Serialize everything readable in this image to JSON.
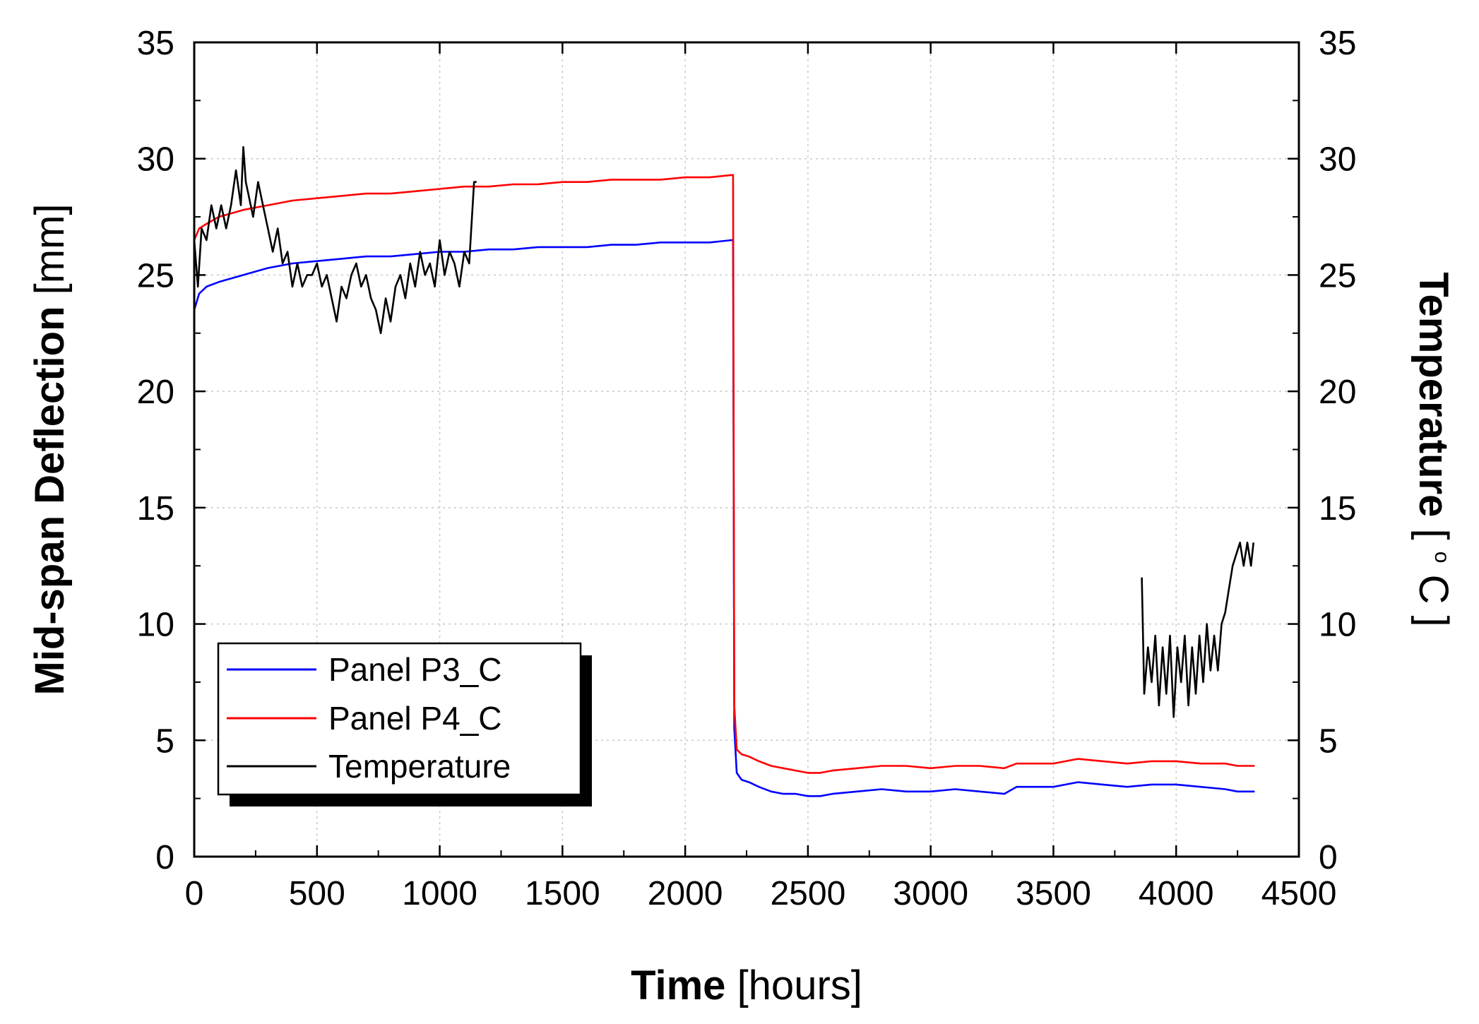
{
  "chart_data": {
    "type": "line",
    "title": "",
    "xlabel": {
      "bold": "Time",
      "unit": "[hours]"
    },
    "ylabel_left": {
      "bold": "Mid-span Deflection",
      "unit": "[mm]"
    },
    "ylabel_right": {
      "bold": "Temperature",
      "unit_open": "[ ",
      "unit_sup": "o",
      "unit_c": "C",
      "unit_close": "]"
    },
    "xlim": [
      0,
      4500
    ],
    "ylim_left": [
      0,
      35
    ],
    "ylim_right": [
      0,
      35
    ],
    "x_ticks": [
      0,
      500,
      1000,
      1500,
      2000,
      2500,
      3000,
      3500,
      4000,
      4500
    ],
    "y_ticks": [
      0,
      5,
      10,
      15,
      20,
      25,
      30,
      35
    ],
    "grid": true,
    "legend_position": "bottom-left",
    "series": [
      {
        "name": "Panel P3_C",
        "color": "#0000ff",
        "axis": "left",
        "x": [
          0,
          20,
          50,
          100,
          200,
          300,
          400,
          500,
          600,
          700,
          800,
          900,
          1000,
          1100,
          1200,
          1300,
          1400,
          1500,
          1600,
          1700,
          1800,
          1900,
          2000,
          2100,
          2190,
          2195,
          2200,
          2210,
          2230,
          2260,
          2300,
          2350,
          2400,
          2450,
          2500,
          2550,
          2600,
          2700,
          2800,
          2900,
          3000,
          3100,
          3200,
          3300,
          3350,
          3400,
          3500,
          3550,
          3600,
          3700,
          3800,
          3900,
          4000,
          4100,
          4200,
          4250,
          4320
        ],
        "values": [
          23.5,
          24.2,
          24.5,
          24.7,
          25.0,
          25.3,
          25.5,
          25.6,
          25.7,
          25.8,
          25.8,
          25.9,
          26.0,
          26.0,
          26.1,
          26.1,
          26.2,
          26.2,
          26.2,
          26.3,
          26.3,
          26.4,
          26.4,
          26.4,
          26.5,
          26.5,
          5.5,
          3.6,
          3.3,
          3.2,
          3.0,
          2.8,
          2.7,
          2.7,
          2.6,
          2.6,
          2.7,
          2.8,
          2.9,
          2.8,
          2.8,
          2.9,
          2.8,
          2.7,
          3.0,
          3.0,
          3.0,
          3.1,
          3.2,
          3.1,
          3.0,
          3.1,
          3.1,
          3.0,
          2.9,
          2.8,
          2.8
        ]
      },
      {
        "name": "Panel P4_C",
        "color": "#ff0000",
        "axis": "left",
        "x": [
          0,
          20,
          50,
          100,
          200,
          300,
          400,
          500,
          600,
          700,
          800,
          900,
          1000,
          1100,
          1200,
          1300,
          1400,
          1500,
          1600,
          1700,
          1800,
          1900,
          2000,
          2100,
          2190,
          2195,
          2200,
          2210,
          2230,
          2260,
          2300,
          2350,
          2400,
          2450,
          2500,
          2550,
          2600,
          2700,
          2800,
          2900,
          3000,
          3100,
          3200,
          3300,
          3350,
          3400,
          3500,
          3550,
          3600,
          3700,
          3800,
          3900,
          4000,
          4100,
          4200,
          4250,
          4320
        ],
        "values": [
          26.5,
          27.0,
          27.2,
          27.5,
          27.8,
          28.0,
          28.2,
          28.3,
          28.4,
          28.5,
          28.5,
          28.6,
          28.7,
          28.8,
          28.8,
          28.9,
          28.9,
          29.0,
          29.0,
          29.1,
          29.1,
          29.1,
          29.2,
          29.2,
          29.3,
          29.3,
          6.5,
          4.6,
          4.4,
          4.3,
          4.1,
          3.9,
          3.8,
          3.7,
          3.6,
          3.6,
          3.7,
          3.8,
          3.9,
          3.9,
          3.8,
          3.9,
          3.9,
          3.8,
          4.0,
          4.0,
          4.0,
          4.1,
          4.2,
          4.1,
          4.0,
          4.1,
          4.1,
          4.0,
          4.0,
          3.9,
          3.9
        ]
      },
      {
        "name": "Temperature",
        "color": "#000000",
        "axis": "right",
        "segments": [
          {
            "x": [
              0,
              15,
              30,
              50,
              70,
              90,
              110,
              130,
              150,
              170,
              190,
              200,
              210,
              220,
              240,
              260,
              280,
              300,
              320,
              340,
              360,
              380,
              400,
              420,
              440,
              460,
              480,
              500,
              520,
              540,
              560,
              580,
              600,
              620,
              640,
              660,
              680,
              700,
              720,
              740,
              760,
              780,
              800,
              820,
              840,
              860,
              880,
              900,
              920,
              940,
              960,
              980,
              1000,
              1020,
              1040,
              1060,
              1080,
              1100,
              1120,
              1140,
              1150
            ],
            "values": [
              26.5,
              24.5,
              27.0,
              26.5,
              28.0,
              27.0,
              28.0,
              27.0,
              28.0,
              29.5,
              28.0,
              30.5,
              29.0,
              28.5,
              27.5,
              29.0,
              28.0,
              27.0,
              26.0,
              27.0,
              25.5,
              26.0,
              24.5,
              25.5,
              24.5,
              25.0,
              25.0,
              25.5,
              24.5,
              25.0,
              24.0,
              23.0,
              24.5,
              24.0,
              25.0,
              25.5,
              24.5,
              25.0,
              24.0,
              23.5,
              22.5,
              24.0,
              23.0,
              24.5,
              25.0,
              24.0,
              25.5,
              24.5,
              26.0,
              25.0,
              25.5,
              24.5,
              26.5,
              25.0,
              26.0,
              25.5,
              24.5,
              26.0,
              25.5,
              29.0,
              29.0
            ]
          },
          {
            "x": [
              3860,
              3870,
              3885,
              3900,
              3915,
              3930,
              3945,
              3960,
              3975,
              3990,
              4005,
              4020,
              4035,
              4050,
              4065,
              4080,
              4095,
              4110,
              4125,
              4140,
              4155,
              4170,
              4185,
              4200,
              4215,
              4230,
              4245,
              4260,
              4275,
              4290,
              4305,
              4315
            ],
            "values": [
              12.0,
              7.0,
              9.0,
              7.5,
              9.5,
              6.5,
              9.0,
              7.0,
              9.5,
              6.0,
              9.0,
              7.5,
              9.5,
              6.5,
              9.0,
              7.0,
              9.5,
              7.5,
              10.0,
              8.0,
              9.5,
              8.0,
              10.0,
              10.5,
              11.5,
              12.5,
              13.0,
              13.5,
              12.5,
              13.5,
              12.5,
              13.5
            ]
          }
        ]
      }
    ]
  }
}
